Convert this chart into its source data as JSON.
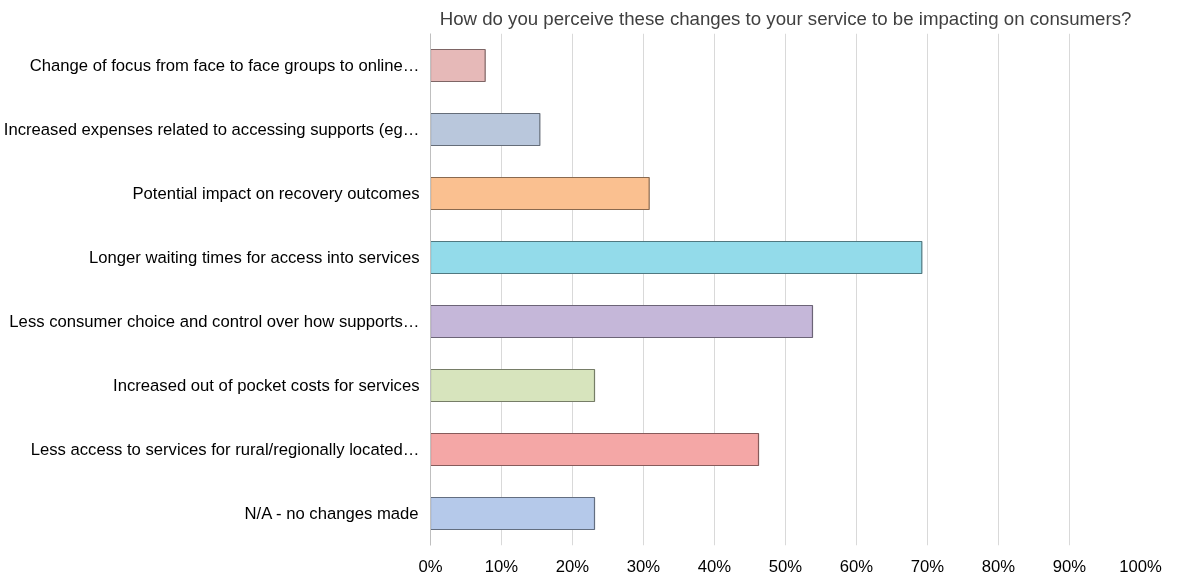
{
  "chart_data": {
    "type": "bar",
    "orientation": "horizontal",
    "title": "How do you perceive these changes to your service to be impacting on consumers?",
    "categories": [
      "Change of focus from face to face groups to online…",
      "Increased expenses related to accessing supports (eg…",
      "Potential impact on recovery outcomes",
      "Longer waiting times for access into services",
      "Less consumer choice and control over how supports…",
      "Increased out of pocket costs for services",
      "Less access to services for rural/regionally located…",
      "N/A - no changes made"
    ],
    "values": [
      7.7,
      15.4,
      30.8,
      69.2,
      53.8,
      23.1,
      46.2,
      23.1
    ],
    "colors": [
      "#e6b9b8",
      "#b9c7dc",
      "#fac090",
      "#93dbea",
      "#c5b7d9",
      "#d7e4bd",
      "#f4a7a6",
      "#b5c9ea"
    ],
    "xlim": [
      0,
      100
    ],
    "xticks": [
      {
        "value": 0,
        "label": "0%"
      },
      {
        "value": 10,
        "label": "10%"
      },
      {
        "value": 20,
        "label": "20%"
      },
      {
        "value": 30,
        "label": "30%"
      },
      {
        "value": 40,
        "label": "40%"
      },
      {
        "value": 50,
        "label": "50%"
      },
      {
        "value": 60,
        "label": "60%"
      },
      {
        "value": 70,
        "label": "70%"
      },
      {
        "value": 80,
        "label": "80%"
      },
      {
        "value": 90,
        "label": "90%"
      },
      {
        "value": 100,
        "label": "100%"
      }
    ],
    "grid": "x"
  }
}
